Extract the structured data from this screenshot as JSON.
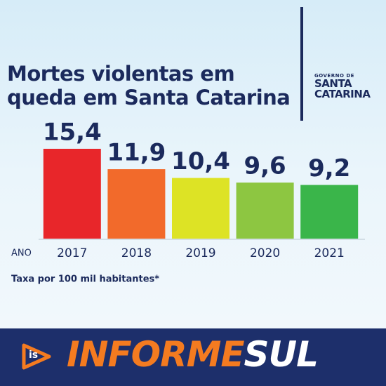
{
  "chart_data": {
    "type": "bar",
    "title": "Mortes violentas em queda em Santa Catarina",
    "x_label": "ANO",
    "note": "Taxa por 100 mil habitantes*",
    "categories": [
      "2017",
      "2018",
      "2019",
      "2020",
      "2021"
    ],
    "values": [
      15.4,
      11.9,
      10.4,
      9.6,
      9.2
    ],
    "value_labels": [
      "15,4",
      "11,9",
      "10,4",
      "9,6",
      "9,2"
    ],
    "colors": [
      "#e8262a",
      "#f26a2b",
      "#dde325",
      "#8dc641",
      "#3ab54a"
    ]
  },
  "logo": {
    "top": "GOVERNO DE",
    "line1": "SANTA",
    "line2": "CATARINA"
  },
  "footer": {
    "icon": "is",
    "brand1": "INFORME",
    "brand2": "SUL"
  }
}
